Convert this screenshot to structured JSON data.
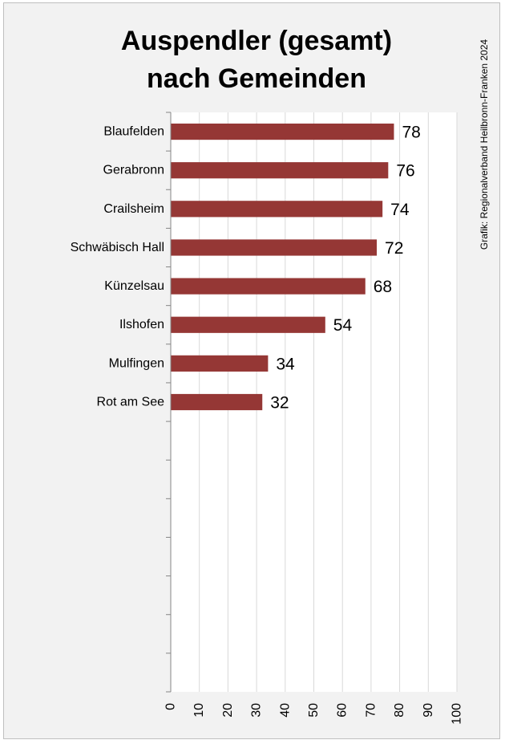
{
  "chart_data": {
    "type": "bar",
    "orientation": "horizontal",
    "title": "Auspendler (gesamt)\nnach Gemeinden",
    "credit": "Grafik: Regionalverband Heilbronn-Franken 2024",
    "categories": [
      "Blaufelden",
      "Gerabronn",
      "Crailsheim",
      "Schwäbisch Hall",
      "Künzelsau",
      "Ilshofen",
      "Mulfingen",
      "Rot am See"
    ],
    "values": [
      78,
      76,
      74,
      72,
      68,
      54,
      34,
      32
    ],
    "xlim": [
      0,
      100
    ],
    "xticks": [
      0,
      10,
      20,
      30,
      40,
      50,
      60,
      70,
      80,
      90,
      100
    ],
    "category_slots": 15,
    "grid": "vertical",
    "bar_color": "#953735",
    "data_labels": true
  }
}
